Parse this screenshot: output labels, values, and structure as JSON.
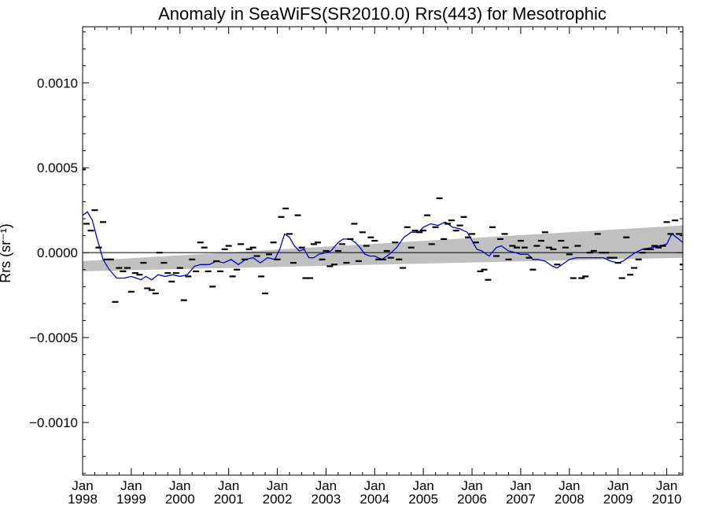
{
  "chart_data": {
    "type": "scatter",
    "title": "Anomaly in SeaWiFS(SR2010.0) Rrs(443) for Mesotrophic",
    "xlabel": "",
    "ylabel": "Rrs (sr⁻¹)",
    "xlim": [
      1998.0,
      2010.33
    ],
    "ylim": [
      -0.00131,
      0.00133
    ],
    "grid": false,
    "yticks": [
      {
        "value": 0.001,
        "label": "0.0010"
      },
      {
        "value": 0.0005,
        "label": "0.0005"
      },
      {
        "value": 0.0,
        "label": "0.0000"
      },
      {
        "value": -0.0005,
        "label": "−0.0005"
      },
      {
        "value": -0.001,
        "label": "−0.0010"
      }
    ],
    "xticks": [
      {
        "value": 1998,
        "month": "Jan",
        "year": "1998"
      },
      {
        "value": 1999,
        "month": "Jan",
        "year": "1999"
      },
      {
        "value": 2000,
        "month": "Jan",
        "year": "2000"
      },
      {
        "value": 2001,
        "month": "Jan",
        "year": "2001"
      },
      {
        "value": 2002,
        "month": "Jan",
        "year": "2002"
      },
      {
        "value": 2003,
        "month": "Jan",
        "year": "2003"
      },
      {
        "value": 2004,
        "month": "Jan",
        "year": "2004"
      },
      {
        "value": 2005,
        "month": "Jan",
        "year": "2005"
      },
      {
        "value": 2006,
        "month": "Jan",
        "year": "2006"
      },
      {
        "value": 2007,
        "month": "Jan",
        "year": "2007"
      },
      {
        "value": 2008,
        "month": "Jan",
        "year": "2008"
      },
      {
        "value": 2009,
        "month": "Jan",
        "year": "2009"
      },
      {
        "value": 2010,
        "month": "Jan",
        "year": "2010"
      }
    ],
    "series": [
      {
        "style": "dash-markers",
        "color": "#000000",
        "x": [
          1998.0,
          1998.08,
          1998.17,
          1998.25,
          1998.33,
          1998.42,
          1998.5,
          1998.58,
          1998.67,
          1998.75,
          1998.83,
          1998.92,
          1999.0,
          1999.08,
          1999.17,
          1999.25,
          1999.33,
          1999.42,
          1999.5,
          1999.58,
          1999.67,
          1999.75,
          1999.83,
          1999.92,
          2000.0,
          2000.08,
          2000.17,
          2000.25,
          2000.33,
          2000.42,
          2000.5,
          2000.58,
          2000.67,
          2000.75,
          2000.83,
          2000.92,
          2001.0,
          2001.08,
          2001.17,
          2001.25,
          2001.33,
          2001.42,
          2001.5,
          2001.58,
          2001.67,
          2001.75,
          2001.83,
          2001.92,
          2002.0,
          2002.08,
          2002.17,
          2002.25,
          2002.33,
          2002.42,
          2002.5,
          2002.58,
          2002.67,
          2002.75,
          2002.83,
          2002.92,
          2003.0,
          2003.08,
          2003.17,
          2003.25,
          2003.33,
          2003.42,
          2003.5,
          2003.58,
          2003.67,
          2003.75,
          2003.83,
          2003.92,
          2004.0,
          2004.08,
          2004.17,
          2004.25,
          2004.33,
          2004.42,
          2004.5,
          2004.58,
          2004.67,
          2004.75,
          2004.83,
          2004.92,
          2005.0,
          2005.08,
          2005.17,
          2005.25,
          2005.33,
          2005.42,
          2005.5,
          2005.58,
          2005.67,
          2005.75,
          2005.83,
          2005.92,
          2006.0,
          2006.08,
          2006.17,
          2006.25,
          2006.33,
          2006.42,
          2006.5,
          2006.58,
          2006.67,
          2006.75,
          2006.83,
          2006.92,
          2007.0,
          2007.08,
          2007.17,
          2007.25,
          2007.33,
          2007.42,
          2007.5,
          2007.58,
          2007.67,
          2007.75,
          2007.83,
          2007.92,
          2008.0,
          2008.08,
          2008.17,
          2008.25,
          2008.33,
          2008.42,
          2008.5,
          2008.58,
          2008.67,
          2008.75,
          2008.83,
          2008.92,
          2009.0,
          2009.08,
          2009.17,
          2009.25,
          2009.33,
          2009.42,
          2009.5,
          2009.58,
          2009.67,
          2009.75,
          2009.83,
          2009.92,
          2010.0,
          2010.08,
          2010.17,
          2010.25,
          2010.33
        ],
        "y": [
          0.00049,
          0.00017,
          0.00013,
          0.00025,
          3e-05,
          0.00018,
          -4e-05,
          -4e-05,
          -0.00029,
          -9e-05,
          -0.00011,
          -9e-05,
          -0.00023,
          -0.00012,
          -0.00013,
          -6e-05,
          -0.00021,
          -0.00022,
          -0.00024,
          0.0,
          -6e-05,
          -0.00012,
          -0.00017,
          -0.00012,
          -9e-05,
          -0.00028,
          -0.00014,
          -4e-05,
          -0.00011,
          6e-05,
          3e-05,
          -0.00011,
          -0.0002,
          -5e-05,
          -0.00011,
          2e-05,
          4e-05,
          -0.00014,
          -0.0001,
          5e-05,
          -4e-05,
          2e-05,
          3e-05,
          -2e-05,
          -0.00014,
          -0.00024,
          -1e-05,
          6e-05,
          -4e-05,
          0.00021,
          0.00026,
          0.00011,
          -6e-05,
          0.00022,
          3e-05,
          -0.00015,
          -0.00015,
          5e-05,
          6e-05,
          -4e-05,
          1e-05,
          -8e-05,
          -7e-05,
          1e-05,
          5e-05,
          -6e-05,
          8e-05,
          0.00017,
          -5e-05,
          0.00012,
          4e-05,
          9e-05,
          7e-05,
          -4e-05,
          -4e-05,
          1e-05,
          -3e-05,
          6e-05,
          -4e-05,
          -9e-05,
          0.00015,
          3e-05,
          0.00013,
          0.00012,
          0.00013,
          0.00022,
          5e-05,
          0.00015,
          0.00032,
          8e-05,
          0.00017,
          0.00019,
          0.00013,
          0.00016,
          0.00021,
          9e-05,
          0.00011,
          6e-05,
          -0.00011,
          -0.0001,
          -0.00016,
          0.00015,
          -2e-05,
          8e-05,
          0.00011,
          -4e-05,
          4e-05,
          3e-05,
          7e-05,
          3e-05,
          -3e-05,
          -0.0001,
          4e-05,
          7e-05,
          0.00012,
          3e-05,
          2e-05,
          -7e-05,
          7e-05,
          3e-05,
          -1e-05,
          -0.00015,
          4e-05,
          -0.00015,
          -0.00014,
          0.0,
          1e-05,
          0.00011,
          0.0,
          0.0,
          -3e-05,
          -3e-05,
          -6e-05,
          -0.00015,
          9e-05,
          -0.00013,
          -9e-05,
          -4e-05,
          0.0,
          2e-05,
          2e-05,
          4e-05,
          3e-05,
          4e-05,
          0.00018,
          0.00011,
          0.00019,
          0.00011,
          -7e-05
        ]
      },
      {
        "style": "line",
        "color": "#0000cc",
        "x": [
          1998.0,
          1998.1,
          1998.2,
          1998.3,
          1998.42,
          1998.55,
          1998.7,
          1998.85,
          1999.0,
          1999.1,
          1999.2,
          1999.3,
          1999.42,
          1999.55,
          1999.7,
          1999.85,
          2000.0,
          2000.15,
          2000.3,
          2000.42,
          2000.6,
          2000.75,
          2000.9,
          2001.05,
          2001.2,
          2001.35,
          2001.5,
          2001.65,
          2001.8,
          2001.95,
          2002.05,
          2002.15,
          2002.25,
          2002.35,
          2002.45,
          2002.55,
          2002.65,
          2002.75,
          2002.85,
          2003.0,
          2003.1,
          2003.25,
          2003.35,
          2003.5,
          2003.6,
          2003.7,
          2003.8,
          2003.9,
          2004.0,
          2004.15,
          2004.3,
          2004.45,
          2004.6,
          2004.75,
          2004.9,
          2005.0,
          2005.15,
          2005.3,
          2005.45,
          2005.6,
          2005.75,
          2005.9,
          2006.0,
          2006.1,
          2006.2,
          2006.35,
          2006.5,
          2006.6,
          2006.75,
          2006.9,
          2007.0,
          2007.15,
          2007.25,
          2007.35,
          2007.5,
          2007.65,
          2007.75,
          2007.9,
          2008.0,
          2008.15,
          2008.3,
          2008.5,
          2008.7,
          2008.85,
          2009.0,
          2009.1,
          2009.2,
          2009.35,
          2009.5,
          2009.7,
          2009.85,
          2010.0,
          2010.1,
          2010.2,
          2010.33
        ],
        "y": [
          0.00022,
          0.00024,
          0.00019,
          8e-05,
          -4e-05,
          -0.0001,
          -0.00015,
          -0.00015,
          -0.00014,
          -0.00015,
          -0.00016,
          -0.00014,
          -0.00016,
          -0.00013,
          -0.00014,
          -0.00013,
          -0.00014,
          -0.00013,
          -8e-05,
          -7e-05,
          -7e-05,
          -5e-05,
          -6e-05,
          -4e-05,
          -7e-05,
          -4e-05,
          -3e-05,
          -6e-05,
          -3e-05,
          -4e-05,
          2e-05,
          0.00011,
          9e-05,
          4e-05,
          1e-05,
          2e-05,
          -3e-05,
          -3e-05,
          -1e-05,
          0.0,
          1e-05,
          6e-05,
          8e-05,
          8e-05,
          6e-05,
          3e-05,
          -1e-05,
          -2e-05,
          -2e-05,
          -4e-05,
          -1e-05,
          3e-05,
          9e-05,
          0.00012,
          0.00012,
          0.00015,
          0.00017,
          0.00016,
          0.00018,
          0.00015,
          0.00014,
          0.00012,
          7e-05,
          2e-05,
          1e-05,
          -2e-05,
          3e-05,
          4e-05,
          1e-05,
          0.0,
          -1e-05,
          -1e-05,
          -4e-05,
          -4e-05,
          -5e-05,
          -8e-05,
          -9e-05,
          -6e-05,
          -4e-05,
          -3e-05,
          -3e-05,
          -3e-05,
          -3e-05,
          -5e-05,
          -6e-05,
          -5e-05,
          -3e-05,
          0.0,
          2e-05,
          3e-05,
          4e-05,
          5e-05,
          0.00011,
          9e-05,
          6e-05
        ]
      },
      {
        "style": "trend-band",
        "color": "#c0c0c0",
        "x": [
          1998.0,
          2010.33
        ],
        "upper": [
          -5e-05,
          0.00016
        ],
        "lower": [
          -0.00011,
          -3e-05
        ]
      }
    ],
    "reference_line": {
      "y": 0.0,
      "color": "#000000"
    }
  }
}
